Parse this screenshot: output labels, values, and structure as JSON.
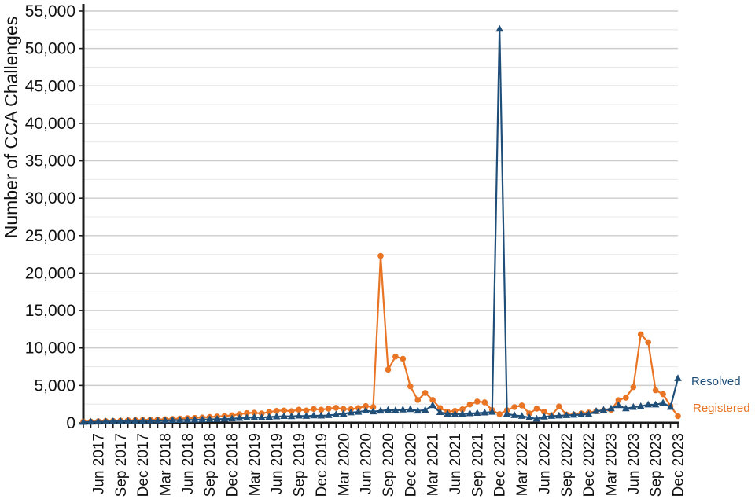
{
  "chart_data": {
    "type": "line",
    "title": "",
    "ylabel": "Number of CCA Challenges",
    "xlabel": "",
    "ylim": [
      0,
      55000
    ],
    "ytick_step": 5000,
    "ytick_labels": [
      "0",
      "5,000",
      "10,000",
      "15,000",
      "20,000",
      "25,000",
      "30,000",
      "35,000",
      "40,000",
      "45,000",
      "50,000",
      "55,000"
    ],
    "minor_grid_step": 2500,
    "grid": true,
    "legend_position": "inline-right",
    "x_unit": "month",
    "x_first_point": "Apr 2017",
    "x_label_start_index": 2,
    "x_label_every": 3,
    "x_tick_labels": [
      "Jun 2017",
      "Sep 2017",
      "Dec 2017",
      "Mar 2018",
      "Jun 2018",
      "Sep 2018",
      "Dec 2018",
      "Mar 2019",
      "Jun 2019",
      "Sep 2019",
      "Dec 2019",
      "Mar 2020",
      "Jun 2020",
      "Sep 2020",
      "Dec 2020",
      "Mar 2021",
      "Jun 2021",
      "Sep 2021",
      "Dec 2021",
      "Mar 2022",
      "Jun 2022",
      "Sep 2022",
      "Dec 2022",
      "Mar 2023",
      "Jun 2023",
      "Sep 2023",
      "Dec 2023"
    ],
    "series": [
      {
        "name": "Registered",
        "color": "#E87424",
        "marker": "circle",
        "values": [
          150,
          170,
          200,
          230,
          260,
          290,
          330,
          360,
          390,
          420,
          450,
          480,
          520,
          570,
          620,
          670,
          720,
          780,
          850,
          920,
          1000,
          1150,
          1300,
          1350,
          1250,
          1450,
          1600,
          1650,
          1550,
          1750,
          1650,
          1850,
          1750,
          1900,
          2000,
          1850,
          1820,
          1970,
          2240,
          2100,
          22300,
          7100,
          8850,
          8550,
          4870,
          3050,
          4000,
          3050,
          1970,
          1500,
          1600,
          1800,
          2450,
          2840,
          2740,
          1700,
          1160,
          1680,
          2100,
          2320,
          1260,
          1890,
          1470,
          1020,
          2180,
          1100,
          1100,
          1260,
          1370,
          1550,
          1650,
          1720,
          3020,
          3370,
          4770,
          11820,
          10770,
          4350,
          3820,
          2240,
          900
        ]
      },
      {
        "name": "Resolved",
        "color": "#1F4E79",
        "marker": "triangle",
        "values": [
          100,
          120,
          140,
          160,
          180,
          200,
          220,
          240,
          260,
          280,
          300,
          320,
          340,
          360,
          380,
          400,
          430,
          460,
          490,
          520,
          550,
          620,
          680,
          730,
          700,
          780,
          830,
          880,
          850,
          930,
          900,
          960,
          940,
          1000,
          1100,
          1200,
          1370,
          1450,
          1610,
          1500,
          1600,
          1700,
          1650,
          1750,
          1800,
          1600,
          1700,
          2320,
          1400,
          1200,
          1150,
          1200,
          1250,
          1300,
          1350,
          1450,
          52600,
          1200,
          1000,
          900,
          700,
          530,
          800,
          900,
          950,
          1000,
          1050,
          1100,
          1150,
          1550,
          1700,
          1900,
          2320,
          1900,
          2090,
          2200,
          2420,
          2420,
          2660,
          2100,
          5930
        ]
      }
    ]
  }
}
